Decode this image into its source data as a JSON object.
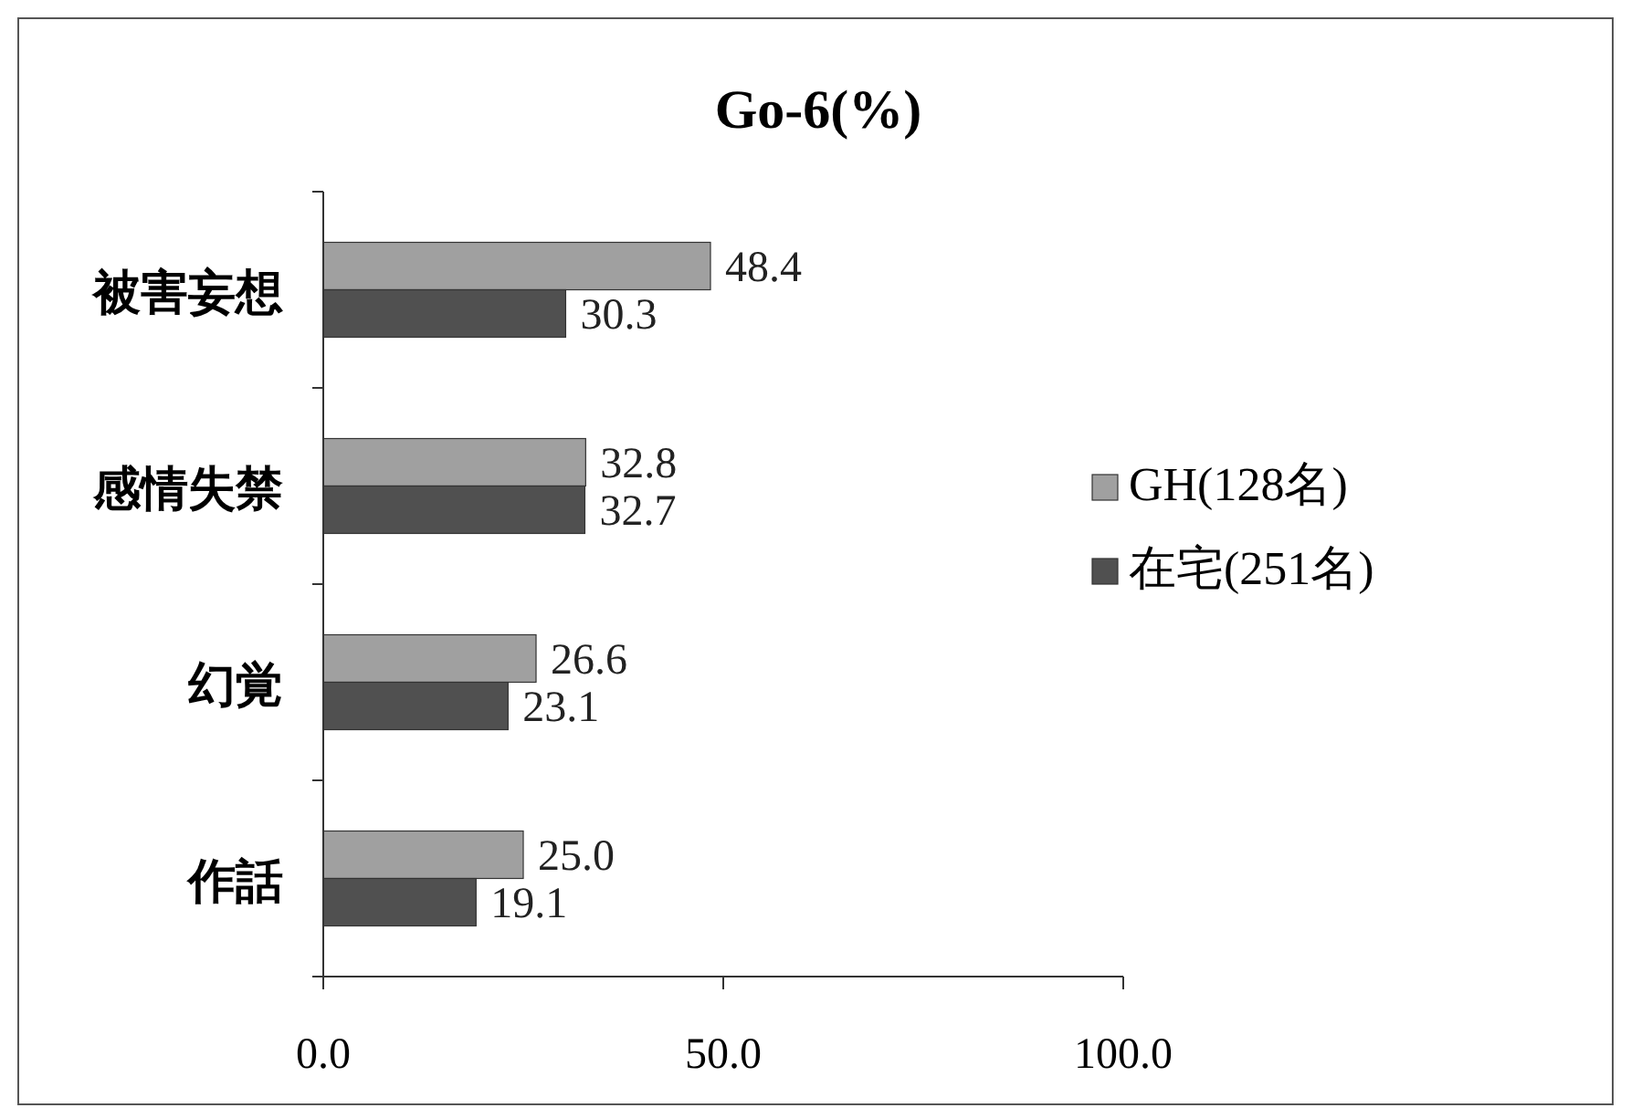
{
  "chart_data": {
    "type": "bar",
    "orientation": "horizontal",
    "title": "Go-6(%)",
    "categories": [
      "被害妄想",
      "感情失禁",
      "幻覚",
      "作話"
    ],
    "series": [
      {
        "name": "GH(128名)",
        "color": "#a0a0a0",
        "values": [
          48.4,
          32.8,
          26.6,
          25.0
        ],
        "value_labels": [
          "48.4",
          "32.8",
          "26.6",
          "25.0"
        ]
      },
      {
        "name": "在宅(251名)",
        "color": "#505050",
        "values": [
          30.3,
          32.7,
          23.1,
          19.1
        ],
        "value_labels": [
          "30.3",
          "32.7",
          "23.1",
          "19.1"
        ]
      }
    ],
    "xlim": [
      0,
      100
    ],
    "xticks": [
      {
        "value": 0,
        "label": "0.0"
      },
      {
        "value": 50,
        "label": "50.0"
      },
      {
        "value": 100,
        "label": "100.0"
      }
    ],
    "grid": false,
    "legend": "right"
  }
}
